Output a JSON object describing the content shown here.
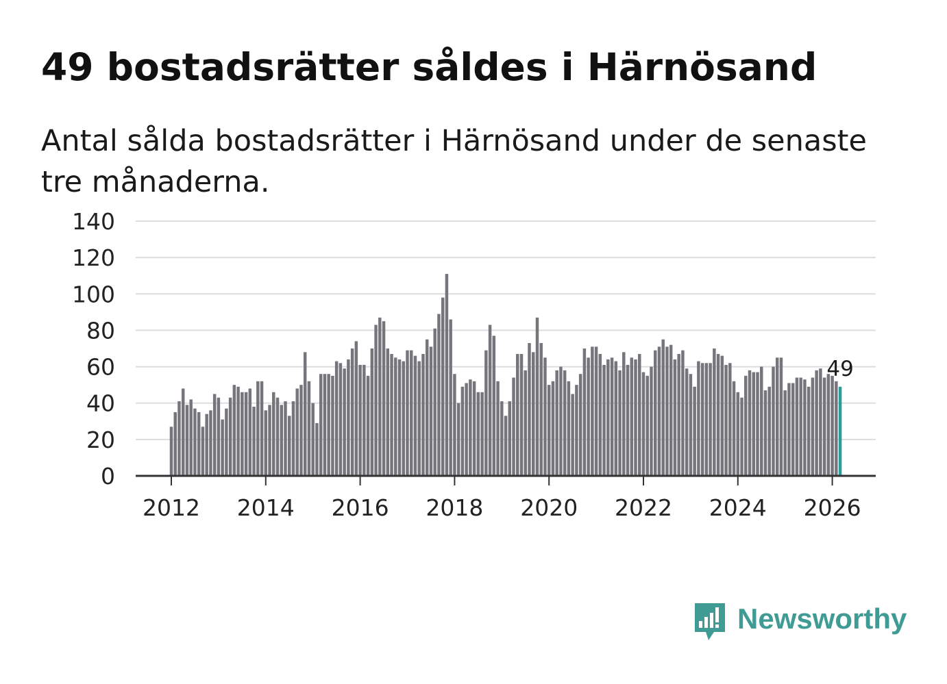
{
  "title": "49 bostadsrätter såldes i Härnösand",
  "subtitle": "Antal sålda bostadsrätter i Härnösand under de senaste tre månaderna.",
  "brand": {
    "name": "Newsworthy",
    "color": "#3f9b94"
  },
  "colors": {
    "bar": "#76757c",
    "highlight": "#2a9d96",
    "grid": "#dddddd",
    "axis": "#333333",
    "text": "#222222"
  },
  "chart_data": {
    "type": "bar",
    "title": "49 bostadsrätter såldes i Härnösand",
    "xlabel": "",
    "ylabel": "",
    "ylim": [
      0,
      140
    ],
    "yticks": [
      0,
      20,
      40,
      60,
      80,
      100,
      120,
      140
    ],
    "xticks": [
      "2012",
      "2014",
      "2016",
      "2018",
      "2020",
      "2022",
      "2024",
      "2026"
    ],
    "x_start_year": 2012,
    "x_end_year": 2026.85,
    "first_period": "2012-01",
    "period_months": 1,
    "grid": true,
    "legend": "none",
    "highlight_last": true,
    "last_value_label": "49",
    "values": [
      27,
      35,
      41,
      48,
      39,
      42,
      37,
      35,
      27,
      34,
      36,
      45,
      43,
      31,
      37,
      43,
      50,
      49,
      46,
      46,
      48,
      38,
      52,
      52,
      36,
      39,
      46,
      43,
      39,
      41,
      33,
      41,
      48,
      50,
      68,
      52,
      40,
      29,
      56,
      56,
      56,
      55,
      63,
      62,
      59,
      64,
      70,
      74,
      61,
      61,
      55,
      70,
      83,
      87,
      85,
      70,
      67,
      65,
      64,
      63,
      69,
      69,
      66,
      63,
      67,
      75,
      71,
      81,
      89,
      98,
      111,
      86,
      56,
      40,
      49,
      51,
      53,
      52,
      46,
      46,
      69,
      83,
      77,
      52,
      41,
      33,
      41,
      54,
      67,
      67,
      58,
      73,
      68,
      87,
      73,
      65,
      50,
      52,
      58,
      60,
      58,
      52,
      45,
      50,
      56,
      70,
      65,
      71,
      71,
      67,
      61,
      64,
      65,
      63,
      58,
      68,
      61,
      65,
      64,
      67,
      57,
      55,
      60,
      69,
      71,
      75,
      71,
      72,
      64,
      67,
      69,
      59,
      56,
      49,
      63,
      62,
      62,
      62,
      70,
      67,
      66,
      61,
      62,
      52,
      46,
      43,
      55,
      58,
      57,
      57,
      60,
      47,
      49,
      60,
      65,
      65,
      47,
      51,
      51,
      54,
      54,
      53,
      49,
      54,
      58,
      59,
      54,
      56,
      55,
      52,
      49
    ]
  }
}
